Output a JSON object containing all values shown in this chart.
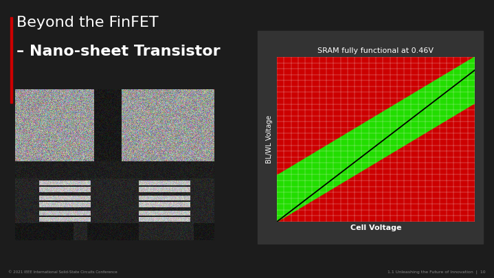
{
  "bg_color": "#1c1c1c",
  "panel_color": "#333333",
  "title_line1": "Beyond the FinFET",
  "title_line2": "– Nano-sheet Transistor",
  "chart_title": "SRAM fully functional at 0.46V",
  "xlabel": "Cell Voltage",
  "ylabel": "BL/WL Voltage",
  "footer_left": "© 2021 IEEE International Solid-State Circuits Conference",
  "footer_right": "1.1 Unleashing the Future of Innovation  |  10",
  "red_color": "#cc0000",
  "green_color": "#22dd00",
  "grid_color": "#ffffff",
  "accent_color": "#cc0000",
  "title_color": "#ffffff",
  "text_color": "#ffffff",
  "footer_color": "#888888",
  "n_grid": 28,
  "lower_line": [
    0.0,
    0.0,
    1.0,
    0.72
  ],
  "upper_line": [
    0.0,
    0.28,
    1.0,
    1.0
  ],
  "diag_line": [
    0.0,
    0.0,
    1.0,
    0.92
  ]
}
